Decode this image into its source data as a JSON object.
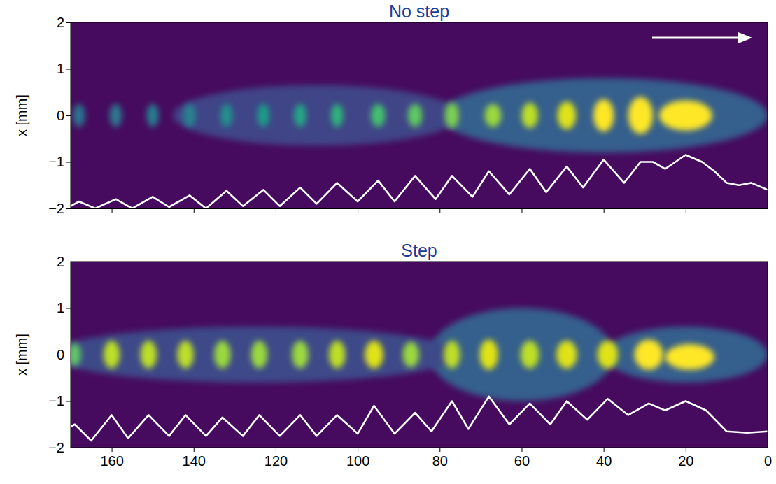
{
  "chart_data": [
    {
      "type": "heatmap",
      "title": "No step",
      "ylabel": "x [mm]",
      "xlim": [
        170,
        0
      ],
      "ylim": [
        -2,
        2
      ],
      "xticks": [
        160,
        140,
        120,
        100,
        80,
        60,
        40,
        20,
        0
      ],
      "yticks": [
        {
          "value": -2,
          "label": "−2"
        },
        {
          "value": -1,
          "label": "−1"
        },
        0,
        1,
        2
      ],
      "tick_labels": "y",
      "spots": {
        "x": [
          40,
          110,
          20,
          31,
          40,
          49,
          58,
          67,
          77,
          86,
          95,
          105,
          114,
          123,
          132,
          141,
          150,
          159,
          168
        ],
        "y": [
          0,
          0,
          0,
          0,
          0,
          0,
          0,
          0,
          0,
          0,
          0,
          0,
          0,
          0,
          0,
          0,
          0,
          0,
          0
        ],
        "width": [
          80,
          70,
          13,
          6,
          5,
          4.5,
          4,
          4,
          3.5,
          3.5,
          3.5,
          3,
          3,
          3,
          3,
          3,
          3,
          3,
          3
        ],
        "height": [
          1.6,
          1.3,
          0.65,
          0.8,
          0.7,
          0.6,
          0.55,
          0.5,
          0.55,
          0.5,
          0.5,
          0.5,
          0.5,
          0.5,
          0.5,
          0.5,
          0.5,
          0.5,
          0.5
        ],
        "intensity": [
          0.3,
          0.2,
          1.0,
          1.0,
          1.0,
          0.95,
          0.9,
          0.85,
          0.8,
          0.75,
          0.7,
          0.65,
          0.6,
          0.55,
          0.5,
          0.45,
          0.42,
          0.4,
          0.38
        ]
      },
      "series": [
        {
          "type": "line",
          "color": "#ffffff",
          "x": [
            0,
            4,
            7,
            10,
            13,
            16,
            20,
            25,
            28,
            31,
            35,
            40,
            45,
            49,
            54,
            58,
            63,
            68,
            72,
            77,
            81,
            86,
            91,
            95,
            100,
            105,
            110,
            114,
            119,
            123,
            128,
            132,
            137,
            141,
            146,
            150,
            155,
            159,
            164,
            168,
            170
          ],
          "values": [
            -1.6,
            -1.45,
            -1.5,
            -1.45,
            -1.2,
            -1.0,
            -0.85,
            -1.15,
            -1.0,
            -1.0,
            -1.45,
            -0.95,
            -1.55,
            -1.1,
            -1.65,
            -1.15,
            -1.7,
            -1.2,
            -1.75,
            -1.3,
            -1.8,
            -1.3,
            -1.85,
            -1.4,
            -1.85,
            -1.45,
            -1.9,
            -1.55,
            -1.95,
            -1.6,
            -1.95,
            -1.62,
            -2.0,
            -1.72,
            -1.97,
            -1.75,
            -2.0,
            -1.8,
            -2.0,
            -1.85,
            -1.95
          ]
        }
      ]
    },
    {
      "type": "heatmap",
      "title": "Step",
      "ylabel": "x [mm]",
      "xlim": [
        170,
        0
      ],
      "ylim": [
        -2,
        2
      ],
      "xticks": [
        160,
        140,
        120,
        100,
        80,
        60,
        40,
        20,
        0
      ],
      "yticks": [
        {
          "value": -2,
          "label": "−2"
        },
        {
          "value": -1,
          "label": "−1"
        },
        0,
        1,
        2
      ],
      "spots": {
        "x": [
          20,
          60,
          125,
          19,
          29,
          39,
          49,
          58,
          68,
          77,
          87,
          96,
          105,
          114,
          124,
          133,
          142,
          151,
          160,
          169
        ],
        "y": [
          0,
          0,
          0,
          -0.05,
          0,
          0,
          0,
          0,
          0,
          0,
          0,
          0,
          0,
          0,
          0,
          0,
          0,
          0,
          0,
          0
        ],
        "width": [
          40,
          45,
          100,
          12,
          7,
          5,
          5,
          4.5,
          4.5,
          4,
          4,
          4.5,
          4,
          4,
          4,
          4,
          4,
          4,
          4,
          3
        ],
        "height": [
          1.2,
          2.0,
          1.2,
          0.55,
          0.65,
          0.6,
          0.6,
          0.6,
          0.65,
          0.6,
          0.55,
          0.6,
          0.6,
          0.6,
          0.6,
          0.6,
          0.6,
          0.6,
          0.6,
          0.5
        ],
        "intensity": [
          0.3,
          0.3,
          0.22,
          1.0,
          1.0,
          0.95,
          0.95,
          0.9,
          0.95,
          0.9,
          0.85,
          0.95,
          0.9,
          0.85,
          0.85,
          0.85,
          0.9,
          0.9,
          0.9,
          0.75
        ]
      },
      "series": [
        {
          "type": "line",
          "color": "#ffffff",
          "x": [
            0,
            5,
            10,
            15,
            20,
            25,
            29,
            34,
            39,
            44,
            49,
            53,
            58,
            63,
            68,
            73,
            77,
            82,
            86,
            91,
            96,
            100,
            105,
            110,
            114,
            119,
            124,
            128,
            133,
            137,
            142,
            146,
            151,
            156,
            160,
            165,
            169,
            170
          ],
          "values": [
            -1.65,
            -1.68,
            -1.65,
            -1.2,
            -1.0,
            -1.2,
            -1.05,
            -1.3,
            -0.95,
            -1.4,
            -1.0,
            -1.5,
            -1.05,
            -1.5,
            -0.9,
            -1.6,
            -1.0,
            -1.65,
            -1.25,
            -1.7,
            -1.1,
            -1.7,
            -1.3,
            -1.75,
            -1.3,
            -1.75,
            -1.3,
            -1.75,
            -1.35,
            -1.75,
            -1.3,
            -1.75,
            -1.3,
            -1.8,
            -1.3,
            -1.85,
            -1.5,
            -1.55
          ]
        }
      ]
    }
  ]
}
